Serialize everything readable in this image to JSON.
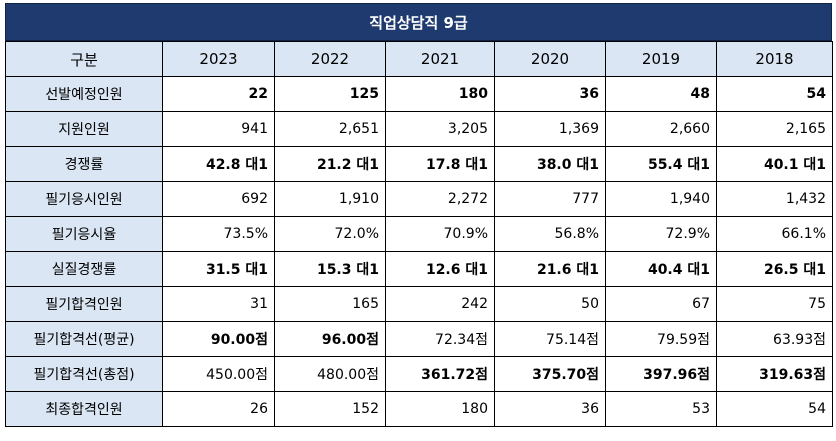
{
  "title": "직업상담직 9급",
  "table": {
    "header": [
      "구분",
      "2023",
      "2022",
      "2021",
      "2020",
      "2019",
      "2018"
    ],
    "rows": [
      {
        "label": "선발예정인원",
        "values": [
          "22",
          "125",
          "180",
          "36",
          "48",
          "54"
        ]
      },
      {
        "label": "지원인원",
        "values": [
          "941",
          "2,651",
          "3,205",
          "1,369",
          "2,660",
          "2,165"
        ]
      },
      {
        "label": "경쟁률",
        "values": [
          "42.8 대1",
          "21.2 대1",
          "17.8 대1",
          "38.0 대1",
          "55.4 대1",
          "40.1 대1"
        ]
      },
      {
        "label": "필기응시인원",
        "values": [
          "692",
          "1,910",
          "2,272",
          "777",
          "1,940",
          "1,432"
        ]
      },
      {
        "label": "필기응시율",
        "values": [
          "73.5%",
          "72.0%",
          "70.9%",
          "56.8%",
          "72.9%",
          "66.1%"
        ]
      },
      {
        "label": "실질경쟁률",
        "values": [
          "31.5 대1",
          "15.3 대1",
          "12.6 대1",
          "21.6 대1",
          "40.4 대1",
          "26.5 대1"
        ]
      },
      {
        "label": "필기합격인원",
        "values": [
          "31",
          "165",
          "242",
          "50",
          "67",
          "75"
        ]
      },
      {
        "label": "필기합격선(평균)",
        "values": [
          "90.00점",
          "96.00점",
          "72.34점",
          "75.14점",
          "79.59점",
          "63.93점"
        ]
      },
      {
        "label": "필기합격선(총점)",
        "values": [
          "450.00점",
          "480.00점",
          "361.72점",
          "375.70점",
          "397.96점",
          "319.63점"
        ]
      },
      {
        "label": "최종합격인원",
        "values": [
          "26",
          "152",
          "180",
          "36",
          "53",
          "54"
        ]
      }
    ]
  },
  "colors": {
    "title_bg": "#1f3a6e",
    "label_bg": "#dae6f4",
    "highlight_text": "#1f6fc0"
  }
}
